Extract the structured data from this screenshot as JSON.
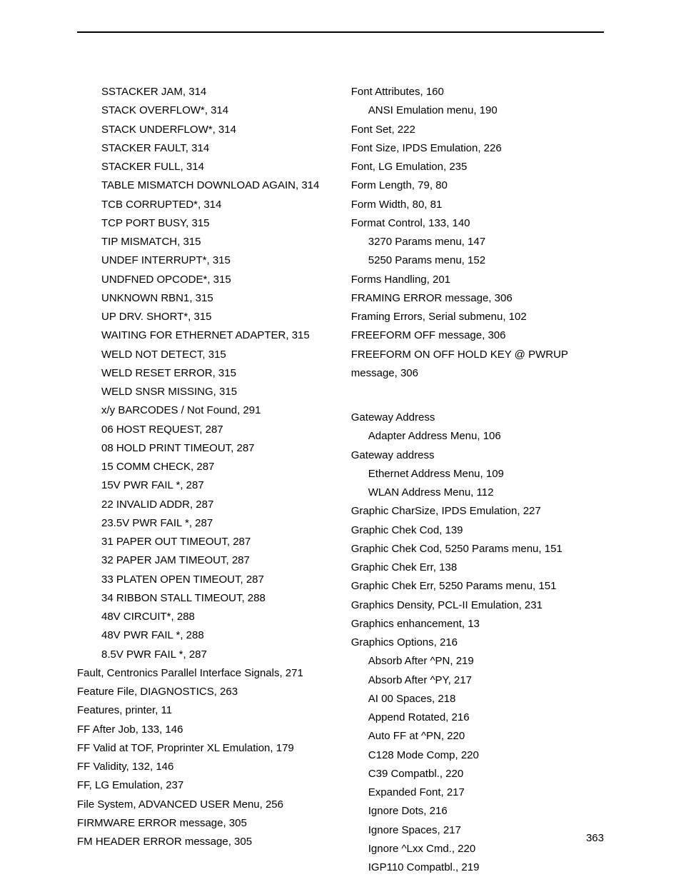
{
  "page_number": "363",
  "columns": {
    "left": [
      {
        "text": "SSTACKER JAM, 314",
        "indent": 0
      },
      {
        "text": "STACK OVERFLOW*, 314",
        "indent": 0
      },
      {
        "text": "STACK UNDERFLOW*, 314",
        "indent": 0
      },
      {
        "text": "STACKER FAULT, 314",
        "indent": 0
      },
      {
        "text": "STACKER FULL, 314",
        "indent": 0
      },
      {
        "text": "TABLE MISMATCH DOWNLOAD AGAIN, 314",
        "indent": 0
      },
      {
        "text": "TCB CORRUPTED*, 314",
        "indent": 0
      },
      {
        "text": "TCP PORT BUSY, 315",
        "indent": 0
      },
      {
        "text": "TIP MISMATCH, 315",
        "indent": 0
      },
      {
        "text": "UNDEF INTERRUPT*, 315",
        "indent": 0
      },
      {
        "text": "UNDFNED OPCODE*, 315",
        "indent": 0
      },
      {
        "text": "UNKNOWN RBN1, 315",
        "indent": 0
      },
      {
        "text": "UP DRV. SHORT*, 315",
        "indent": 0
      },
      {
        "text": "WAITING FOR ETHERNET ADAPTER, 315",
        "indent": 0
      },
      {
        "text": "WELD NOT DETECT, 315",
        "indent": 0
      },
      {
        "text": "WELD RESET ERROR, 315",
        "indent": 0
      },
      {
        "text": "WELD SNSR MISSING, 315",
        "indent": 0
      },
      {
        "text": "x/y BARCODES / Not Found, 291",
        "indent": 0
      },
      {
        "text": "06 HOST REQUEST, 287",
        "indent": 0
      },
      {
        "text": "08 HOLD PRINT TIMEOUT, 287",
        "indent": 0
      },
      {
        "text": "15 COMM CHECK, 287",
        "indent": 0
      },
      {
        "text": "15V PWR FAIL *, 287",
        "indent": 0
      },
      {
        "text": "22 INVALID ADDR, 287",
        "indent": 0
      },
      {
        "text": "23.5V PWR FAIL *, 287",
        "indent": 0
      },
      {
        "text": "31 PAPER OUT TIMEOUT, 287",
        "indent": 0
      },
      {
        "text": "32 PAPER JAM TIMEOUT, 287",
        "indent": 0
      },
      {
        "text": "33 PLATEN OPEN TIMEOUT, 287",
        "indent": 0
      },
      {
        "text": "34 RIBBON STALL TIMEOUT, 288",
        "indent": 0
      },
      {
        "text": "48V CIRCUIT*, 288",
        "indent": 0
      },
      {
        "text": "48V PWR FAIL *, 288",
        "indent": 0
      },
      {
        "text": "8.5V PWR FAIL *, 287",
        "indent": 0
      },
      {
        "text": "Fault, Centronics Parallel Interface Signals, 271",
        "indent": -1
      },
      {
        "text": "Feature File, DIAGNOSTICS, 263",
        "indent": -1
      },
      {
        "text": "Features, printer, 11",
        "indent": -1
      },
      {
        "text": "FF After Job, 133, 146",
        "indent": -1
      },
      {
        "text": "FF Valid at TOF, Proprinter XL Emulation, 179",
        "indent": -1
      },
      {
        "text": "FF Validity, 132, 146",
        "indent": -1
      },
      {
        "text": "FF, LG Emulation, 237",
        "indent": -1
      },
      {
        "text": "File System, ADVANCED USER Menu, 256",
        "indent": -1
      },
      {
        "text": "FIRMWARE ERROR message, 305",
        "indent": -1
      },
      {
        "text": "FM HEADER ERROR message, 305",
        "indent": -1
      }
    ],
    "right_f": [
      {
        "text": "Font Attributes, 160",
        "indent": 0
      },
      {
        "text": "ANSI Emulation menu, 190",
        "indent": 1
      },
      {
        "text": "Font Set, 222",
        "indent": 0
      },
      {
        "text": "Font Size, IPDS Emulation, 226",
        "indent": 0
      },
      {
        "text": "Font, LG Emulation, 235",
        "indent": 0
      },
      {
        "text": "Form Length, 79, 80",
        "indent": 0
      },
      {
        "text": "Form Width, 80, 81",
        "indent": 0
      },
      {
        "text": "Format Control, 133, 140",
        "indent": 0
      },
      {
        "text": "3270 Params menu, 147",
        "indent": 1
      },
      {
        "text": "5250 Params menu, 152",
        "indent": 1
      },
      {
        "text": "Forms Handling, 201",
        "indent": 0
      },
      {
        "text": "FRAMING ERROR message, 306",
        "indent": 0
      },
      {
        "text": "Framing Errors, Serial submenu, 102",
        "indent": 0
      },
      {
        "text": "FREEFORM OFF message, 306",
        "indent": 0
      },
      {
        "text": "FREEFORM ON OFF HOLD KEY @ PWRUP message, 306",
        "indent": 0
      }
    ],
    "right_g": [
      {
        "text": "Gateway Address",
        "indent": 0
      },
      {
        "text": "Adapter Address Menu, 106",
        "indent": 1
      },
      {
        "text": "Gateway address",
        "indent": 0
      },
      {
        "text": "Ethernet Address Menu, 109",
        "indent": 1
      },
      {
        "text": "WLAN Address Menu, 112",
        "indent": 1
      },
      {
        "text": "Graphic CharSize, IPDS Emulation, 227",
        "indent": 0
      },
      {
        "text": "Graphic Chek Cod, 139",
        "indent": 0
      },
      {
        "text": "Graphic Chek Cod, 5250 Params menu, 151",
        "indent": 0
      },
      {
        "text": "Graphic Chek Err, 138",
        "indent": 0
      },
      {
        "text": "Graphic Chek Err, 5250 Params menu, 151",
        "indent": 0
      },
      {
        "text": "Graphics Density, PCL-II Emulation, 231",
        "indent": 0
      },
      {
        "text": "Graphics enhancement, 13",
        "indent": 0
      },
      {
        "text": "Graphics Options, 216",
        "indent": 0
      },
      {
        "text": "Absorb After ^PN, 219",
        "indent": 1
      },
      {
        "text": "Absorb After ^PY, 217",
        "indent": 1
      },
      {
        "text": "AI 00 Spaces, 218",
        "indent": 1
      },
      {
        "text": "Append Rotated, 216",
        "indent": 1
      },
      {
        "text": "Auto FF at ^PN, 220",
        "indent": 1
      },
      {
        "text": "C128 Mode Comp, 220",
        "indent": 1
      },
      {
        "text": "C39 Compatbl., 220",
        "indent": 1
      },
      {
        "text": "Expanded Font, 217",
        "indent": 1
      },
      {
        "text": "Ignore Dots, 216",
        "indent": 1
      },
      {
        "text": "Ignore Spaces, 217",
        "indent": 1
      },
      {
        "text": "Ignore ^Lxx Cmd., 220",
        "indent": 1
      },
      {
        "text": "IGP110 Compatbl., 219",
        "indent": 1
      }
    ]
  }
}
